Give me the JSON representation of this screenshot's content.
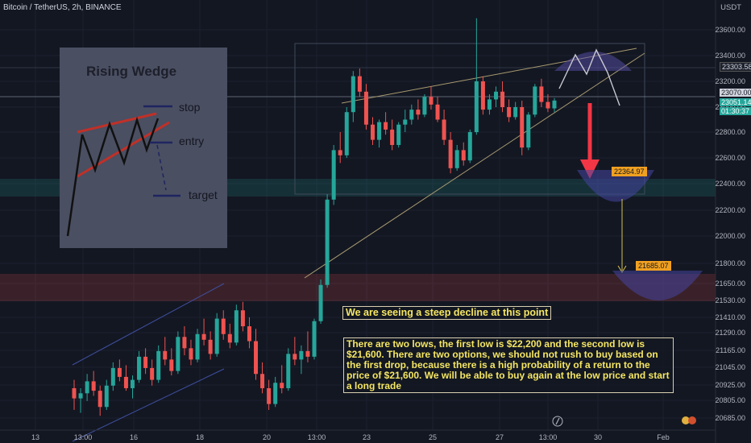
{
  "header": {
    "symbol": "Bitcoin / TetherUS, 2h, BINANCE"
  },
  "axis": {
    "currency": "USDT",
    "y_ticks": [
      "23600.00",
      "23400.00",
      "23200.00",
      "23000.00",
      "22800.00",
      "22600.00",
      "22400.00",
      "22200.00",
      "22000.00",
      "21800.00",
      "21650.00",
      "21530.00",
      "21410.00",
      "21290.00",
      "21165.00",
      "21045.00",
      "20925.00",
      "20805.00",
      "20685.00"
    ],
    "x_ticks": [
      "13",
      "13:00",
      "16",
      "18",
      "20",
      "13:00",
      "23",
      "25",
      "27",
      "13:00",
      "30",
      "Feb"
    ]
  },
  "price_tags": {
    "level_1": "23303.58",
    "level_2": "23070.00",
    "current": "23051.14",
    "countdown": "01:30:37"
  },
  "targets": {
    "first": "22364.97",
    "second": "21685.07"
  },
  "inset": {
    "title": "Rising Wedge",
    "stop": "stop",
    "entry": "entry",
    "target": "target"
  },
  "notes": {
    "decline": "We are seeing a steep decline at this point",
    "analysis": "There are two lows, the first low is $22,200 and the second low is $21,600. There are two options, we should not rush to buy based on the first drop, because there is a high probability of a return to the price of $21,600. We will be able to buy again at the low price and start a long trade"
  },
  "colors": {
    "up": "#26a69a",
    "down": "#ef5350",
    "bg": "#131722",
    "note": "#f5e663",
    "target": "#f0a020"
  },
  "chart_data": {
    "type": "candlestick",
    "title": "Bitcoin / TetherUS, 2h, BINANCE",
    "ylabel": "USDT",
    "ylim": [
      20600,
      23800
    ],
    "levels": [
      23303.58,
      23070.0,
      22364.97,
      21685.07
    ],
    "series": [
      {
        "values": [
          [
            20900,
            20960,
            20740,
            20820
          ],
          [
            20820,
            20900,
            20720,
            20860
          ],
          [
            20860,
            21000,
            20800,
            20950
          ],
          [
            20950,
            21020,
            20840,
            20880
          ],
          [
            20880,
            20920,
            20700,
            20760
          ],
          [
            20760,
            20960,
            20740,
            20920
          ],
          [
            20920,
            21080,
            20880,
            21040
          ],
          [
            21040,
            21100,
            20950,
            20980
          ],
          [
            20980,
            21060,
            20880,
            20900
          ],
          [
            20900,
            20990,
            20820,
            20960
          ],
          [
            20960,
            21160,
            20940,
            21120
          ],
          [
            21120,
            21180,
            21000,
            21040
          ],
          [
            21040,
            21100,
            20920,
            20960
          ],
          [
            20960,
            21200,
            20940,
            21160
          ],
          [
            21160,
            21260,
            21060,
            21100
          ],
          [
            21100,
            21180,
            20990,
            21020
          ],
          [
            21020,
            21300,
            21000,
            21260
          ],
          [
            21260,
            21340,
            21130,
            21180
          ],
          [
            21180,
            21240,
            21060,
            21100
          ],
          [
            21100,
            21320,
            21080,
            21280
          ],
          [
            21280,
            21400,
            21200,
            21240
          ],
          [
            21240,
            21300,
            21100,
            21140
          ],
          [
            21140,
            21440,
            21120,
            21400
          ],
          [
            21400,
            21460,
            21240,
            21280
          ],
          [
            21280,
            21360,
            21180,
            21220
          ],
          [
            21220,
            21500,
            21200,
            21460
          ],
          [
            21460,
            21520,
            21300,
            21340
          ],
          [
            21340,
            21410,
            21180,
            21230
          ],
          [
            21230,
            21320,
            20960,
            21000
          ],
          [
            21000,
            21080,
            20860,
            20900
          ],
          [
            20900,
            20960,
            20740,
            20780
          ],
          [
            20780,
            20980,
            20760,
            20940
          ],
          [
            20940,
            21060,
            20860,
            20900
          ],
          [
            20900,
            21180,
            20880,
            21140
          ],
          [
            21140,
            21260,
            21060,
            21100
          ],
          [
            21100,
            21200,
            21000,
            21160
          ],
          [
            21160,
            21300,
            21080,
            21120
          ],
          [
            21120,
            21400,
            21100,
            21380
          ],
          [
            21380,
            21680,
            21360,
            21640
          ],
          [
            21640,
            22320,
            21620,
            22280
          ],
          [
            22280,
            22700,
            22240,
            22660
          ],
          [
            22660,
            22800,
            22560,
            22620
          ],
          [
            22620,
            23000,
            22600,
            22960
          ],
          [
            22960,
            23280,
            22880,
            23240
          ],
          [
            23240,
            23300,
            23080,
            23120
          ],
          [
            23120,
            23180,
            22820,
            22860
          ],
          [
            22860,
            22920,
            22700,
            22740
          ],
          [
            22740,
            22900,
            22680,
            22880
          ],
          [
            22880,
            22960,
            22780,
            22820
          ],
          [
            22820,
            22900,
            22660,
            22700
          ],
          [
            22700,
            22880,
            22680,
            22860
          ],
          [
            22860,
            22980,
            22800,
            22900
          ],
          [
            22900,
            23020,
            22860,
            22980
          ],
          [
            22980,
            23060,
            22900,
            22940
          ],
          [
            22940,
            23100,
            22920,
            23080
          ],
          [
            23080,
            23160,
            22980,
            23020
          ],
          [
            23020,
            23080,
            22880,
            22900
          ],
          [
            22900,
            22980,
            22700,
            22740
          ],
          [
            22740,
            22800,
            22480,
            22520
          ],
          [
            22520,
            22700,
            22500,
            22660
          ],
          [
            22660,
            22720,
            22540,
            22580
          ],
          [
            22580,
            22820,
            22560,
            22800
          ],
          [
            22800,
            23690,
            22780,
            23200
          ],
          [
            23200,
            23240,
            22940,
            22980
          ],
          [
            22980,
            23100,
            22940,
            23060
          ],
          [
            23060,
            23160,
            23000,
            23120
          ],
          [
            23120,
            23200,
            22960,
            23000
          ],
          [
            23000,
            23060,
            22880,
            22920
          ],
          [
            22920,
            23040,
            22900,
            23000
          ],
          [
            23000,
            23050,
            22620,
            22680
          ],
          [
            22680,
            22960,
            22660,
            22940
          ],
          [
            22940,
            23180,
            22920,
            23160
          ],
          [
            23160,
            23220,
            23000,
            23040
          ],
          [
            23040,
            23100,
            22960,
            22990
          ],
          [
            22990,
            23070,
            22960,
            23051
          ]
        ]
      }
    ]
  }
}
